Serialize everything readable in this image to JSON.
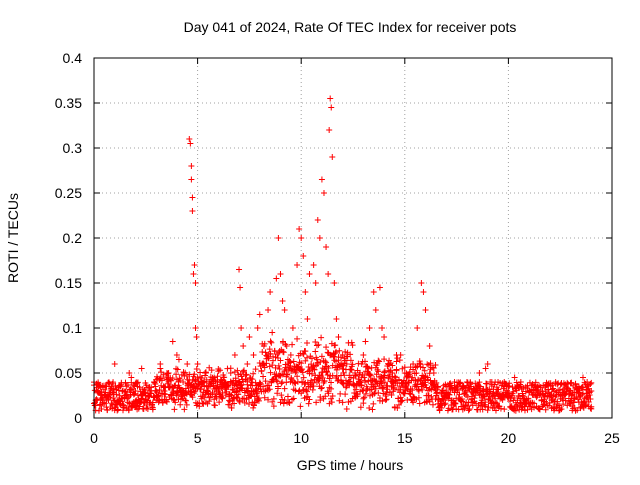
{
  "chart_data": {
    "type": "scatter",
    "title": "Day 041 of 2024, Rate Of TEC Index for receiver pots",
    "xlabel": "GPS time / hours",
    "ylabel": "ROTI / TECUs",
    "xlim": [
      0,
      25
    ],
    "ylim": [
      0,
      0.4
    ],
    "x_ticks": [
      0,
      5,
      10,
      15,
      20,
      25
    ],
    "x_tick_labels": [
      "0",
      "5",
      "10",
      "15",
      "20",
      "25"
    ],
    "y_ticks": [
      0,
      0.05,
      0.1,
      0.15,
      0.2,
      0.25,
      0.3,
      0.35,
      0.4
    ],
    "y_tick_labels": [
      "0",
      "0.05",
      "0.1",
      "0.15",
      "0.2",
      "0.25",
      "0.3",
      "0.35",
      "0.4"
    ],
    "grid": true,
    "marker": "+",
    "series": [
      {
        "name": "ROTI",
        "color": "#ff0000",
        "points": [
          [
            0.1,
            0.02
          ],
          [
            0.2,
            0.03
          ],
          [
            0.3,
            0.015
          ],
          [
            0.5,
            0.025
          ],
          [
            0.7,
            0.02
          ],
          [
            0.9,
            0.03
          ],
          [
            1.0,
            0.06
          ],
          [
            1.2,
            0.02
          ],
          [
            1.5,
            0.025
          ],
          [
            1.7,
            0.05
          ],
          [
            1.8,
            0.045
          ],
          [
            2.0,
            0.03
          ],
          [
            2.1,
            0.035
          ],
          [
            2.3,
            0.055
          ],
          [
            2.5,
            0.025
          ],
          [
            2.7,
            0.03
          ],
          [
            2.9,
            0.04
          ],
          [
            3.0,
            0.025
          ],
          [
            3.2,
            0.06
          ],
          [
            3.4,
            0.03
          ],
          [
            3.6,
            0.05
          ],
          [
            3.8,
            0.085
          ],
          [
            4.0,
            0.07
          ],
          [
            4.1,
            0.065
          ],
          [
            4.3,
            0.04
          ],
          [
            4.5,
            0.06
          ],
          [
            4.6,
            0.31
          ],
          [
            4.65,
            0.305
          ],
          [
            4.7,
            0.28
          ],
          [
            4.7,
            0.265
          ],
          [
            4.75,
            0.245
          ],
          [
            4.75,
            0.23
          ],
          [
            4.8,
            0.16
          ],
          [
            4.85,
            0.17
          ],
          [
            4.9,
            0.15
          ],
          [
            4.9,
            0.1
          ],
          [
            4.95,
            0.09
          ],
          [
            5.0,
            0.06
          ],
          [
            5.2,
            0.04
          ],
          [
            5.4,
            0.05
          ],
          [
            5.6,
            0.035
          ],
          [
            5.8,
            0.045
          ],
          [
            6.0,
            0.03
          ],
          [
            6.2,
            0.04
          ],
          [
            6.4,
            0.035
          ],
          [
            6.6,
            0.05
          ],
          [
            6.8,
            0.07
          ],
          [
            7.0,
            0.165
          ],
          [
            7.05,
            0.145
          ],
          [
            7.1,
            0.1
          ],
          [
            7.2,
            0.08
          ],
          [
            7.4,
            0.06
          ],
          [
            7.5,
            0.09
          ],
          [
            7.7,
            0.07
          ],
          [
            7.9,
            0.1
          ],
          [
            8.0,
            0.115
          ],
          [
            8.2,
            0.08
          ],
          [
            8.4,
            0.12
          ],
          [
            8.5,
            0.14
          ],
          [
            8.6,
            0.095
          ],
          [
            8.8,
            0.155
          ],
          [
            8.9,
            0.2
          ],
          [
            9.0,
            0.16
          ],
          [
            9.1,
            0.13
          ],
          [
            9.2,
            0.12
          ],
          [
            9.3,
            0.08
          ],
          [
            9.5,
            0.07
          ],
          [
            9.6,
            0.1
          ],
          [
            9.8,
            0.17
          ],
          [
            9.9,
            0.21
          ],
          [
            10.0,
            0.2
          ],
          [
            10.1,
            0.18
          ],
          [
            10.2,
            0.14
          ],
          [
            10.3,
            0.11
          ],
          [
            10.4,
            0.16
          ],
          [
            10.6,
            0.17
          ],
          [
            10.7,
            0.15
          ],
          [
            10.8,
            0.22
          ],
          [
            10.9,
            0.2
          ],
          [
            11.0,
            0.265
          ],
          [
            11.1,
            0.25
          ],
          [
            11.2,
            0.19
          ],
          [
            11.3,
            0.16
          ],
          [
            11.35,
            0.32
          ],
          [
            11.4,
            0.355
          ],
          [
            11.45,
            0.345
          ],
          [
            11.5,
            0.29
          ],
          [
            11.6,
            0.15
          ],
          [
            11.7,
            0.11
          ],
          [
            11.8,
            0.09
          ],
          [
            12.0,
            0.07
          ],
          [
            12.2,
            0.06
          ],
          [
            12.4,
            0.045
          ],
          [
            12.6,
            0.05
          ],
          [
            12.8,
            0.04
          ],
          [
            13.0,
            0.07
          ],
          [
            13.1,
            0.085
          ],
          [
            13.3,
            0.1
          ],
          [
            13.5,
            0.14
          ],
          [
            13.6,
            0.12
          ],
          [
            13.8,
            0.145
          ],
          [
            13.9,
            0.1
          ],
          [
            14.0,
            0.09
          ],
          [
            14.2,
            0.06
          ],
          [
            14.4,
            0.05
          ],
          [
            14.6,
            0.07
          ],
          [
            14.8,
            0.07
          ],
          [
            15.0,
            0.05
          ],
          [
            15.2,
            0.04
          ],
          [
            15.4,
            0.06
          ],
          [
            15.6,
            0.1
          ],
          [
            15.8,
            0.15
          ],
          [
            15.9,
            0.14
          ],
          [
            16.0,
            0.12
          ],
          [
            16.2,
            0.08
          ],
          [
            16.4,
            0.05
          ],
          [
            16.6,
            0.035
          ],
          [
            16.8,
            0.03
          ],
          [
            17.0,
            0.035
          ],
          [
            17.4,
            0.04
          ],
          [
            17.8,
            0.035
          ],
          [
            18.0,
            0.04
          ],
          [
            18.2,
            0.035
          ],
          [
            18.6,
            0.05
          ],
          [
            18.9,
            0.055
          ],
          [
            19.0,
            0.06
          ],
          [
            19.2,
            0.04
          ],
          [
            19.5,
            0.04
          ],
          [
            19.8,
            0.04
          ],
          [
            20.0,
            0.035
          ],
          [
            20.3,
            0.045
          ],
          [
            20.6,
            0.04
          ],
          [
            21.0,
            0.03
          ],
          [
            21.4,
            0.035
          ],
          [
            21.8,
            0.03
          ],
          [
            22.2,
            0.03
          ],
          [
            22.6,
            0.025
          ],
          [
            23.0,
            0.03
          ],
          [
            23.4,
            0.035
          ],
          [
            23.6,
            0.045
          ],
          [
            23.8,
            0.04
          ],
          [
            24.0,
            0.03
          ]
        ],
        "background_band": {
          "min": 0.008,
          "max": 0.04,
          "step_hours": 0.008
        }
      }
    ]
  }
}
